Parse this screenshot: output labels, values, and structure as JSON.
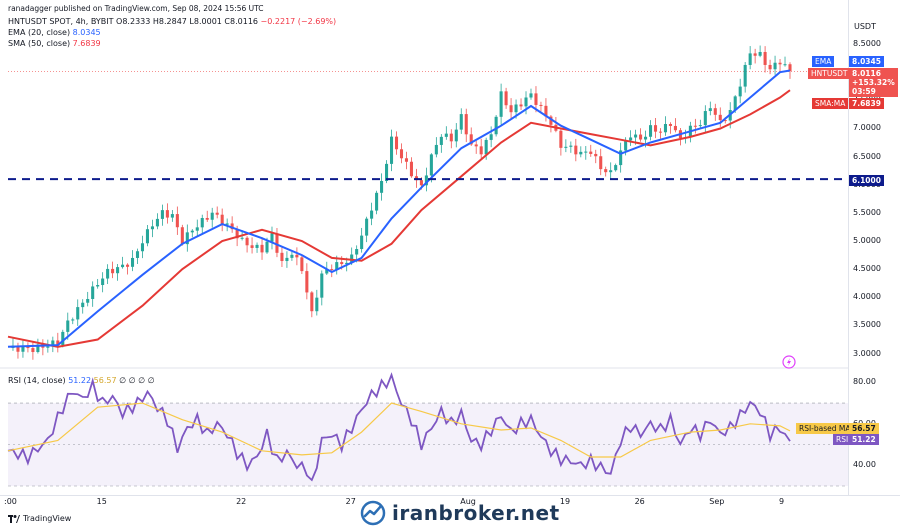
{
  "header": {
    "author_line": "ranadagger published on TradingView.com, Sep 08, 2024 15:56 UTC",
    "symbol": "HNTUSDT SPOT, 4h, BYBIT",
    "ohlc": "O8.2333  H8.2847  L8.0001  C8.0116",
    "change": "−0.2217 (−2.69%)",
    "ema_label": "EMA (20, close)",
    "ema_value": "8.0345",
    "sma_label": "SMA (50, close)",
    "sma_value": "7.6839"
  },
  "rsi_header": {
    "label": "RSI (14, close)",
    "value1": "51.22",
    "value2": "56.57",
    "rest": "∅ ∅ ∅ ∅"
  },
  "price_axis": {
    "currency": "USDT",
    "ticks": [
      "8.5000",
      "8.0000",
      "7.5000",
      "7.0000",
      "6.5000",
      "6.0000",
      "5.5000",
      "5.0000",
      "4.5000",
      "4.0000",
      "3.5000",
      "3.0000"
    ],
    "tags": {
      "ema_name": "EMA",
      "ema_value": "8.0345",
      "symbol": "HNTUSDT",
      "last": "8.0116",
      "change_pct": "+153.32%",
      "countdown": "03:59",
      "sma_name": "SMA:MA",
      "sma_value": "7.6839",
      "level": "6.1000"
    }
  },
  "rsi_axis": {
    "ticks": [
      "80.00",
      "60.00",
      "40.00"
    ],
    "tags": {
      "ma_name": "RSI-based MA",
      "ma_value": "56.57",
      "rsi_name": "RSI",
      "rsi_value": "51.22"
    }
  },
  "time_axis": {
    "labels": [
      ":00",
      "15",
      "22",
      "27",
      "Aug",
      "19",
      "26",
      "Sep",
      "9"
    ]
  },
  "footer": {
    "tradingview": "TradingView",
    "watermark": "iranbroker.net"
  },
  "colors": {
    "up": "#26a69a",
    "down": "#ef5350",
    "ema": "#2962ff",
    "sma": "#e53935",
    "rsi": "#7e57c2",
    "rsi_ma": "#f7c948",
    "level": "#0d1b8c"
  },
  "chart_data": [
    {
      "type": "candlestick",
      "title": "HNTUSDT SPOT, 4h, BYBIT",
      "ylim": [
        2.85,
        8.75
      ],
      "support_level": 6.1,
      "x_labels": [
        ":00",
        "15",
        "22",
        "27",
        "Aug",
        "19",
        "26",
        "Sep",
        "9"
      ],
      "close_path": [
        {
          "d": 0,
          "v": 3.1
        },
        {
          "d": 5,
          "v": 3.08
        },
        {
          "d": 8,
          "v": 3.15
        },
        {
          "d": 10,
          "v": 3.2
        },
        {
          "d": 12,
          "v": 3.55
        },
        {
          "d": 15,
          "v": 3.9
        },
        {
          "d": 18,
          "v": 4.25
        },
        {
          "d": 20,
          "v": 4.45
        },
        {
          "d": 23,
          "v": 4.55
        },
        {
          "d": 25,
          "v": 4.65
        },
        {
          "d": 27,
          "v": 5.0
        },
        {
          "d": 29,
          "v": 5.3
        },
        {
          "d": 31,
          "v": 5.5
        },
        {
          "d": 33,
          "v": 5.45
        },
        {
          "d": 35,
          "v": 5.0
        },
        {
          "d": 37,
          "v": 5.2
        },
        {
          "d": 39,
          "v": 5.35
        },
        {
          "d": 41,
          "v": 5.5
        },
        {
          "d": 43,
          "v": 5.35
        },
        {
          "d": 45,
          "v": 5.2
        },
        {
          "d": 47,
          "v": 5.0
        },
        {
          "d": 49,
          "v": 4.9
        },
        {
          "d": 51,
          "v": 4.85
        },
        {
          "d": 53,
          "v": 5.1
        },
        {
          "d": 55,
          "v": 4.6
        },
        {
          "d": 57,
          "v": 4.8
        },
        {
          "d": 59,
          "v": 4.5
        },
        {
          "d": 61,
          "v": 3.7
        },
        {
          "d": 63,
          "v": 4.4
        },
        {
          "d": 65,
          "v": 4.55
        },
        {
          "d": 67,
          "v": 4.6
        },
        {
          "d": 69,
          "v": 4.7
        },
        {
          "d": 71,
          "v": 5.1
        },
        {
          "d": 73,
          "v": 5.6
        },
        {
          "d": 75,
          "v": 6.05
        },
        {
          "d": 77,
          "v": 6.8
        },
        {
          "d": 79,
          "v": 6.5
        },
        {
          "d": 81,
          "v": 6.2
        },
        {
          "d": 83,
          "v": 5.95
        },
        {
          "d": 85,
          "v": 6.5
        },
        {
          "d": 87,
          "v": 6.9
        },
        {
          "d": 89,
          "v": 6.8
        },
        {
          "d": 91,
          "v": 7.2
        },
        {
          "d": 93,
          "v": 6.7
        },
        {
          "d": 95,
          "v": 6.6
        },
        {
          "d": 97,
          "v": 6.9
        },
        {
          "d": 99,
          "v": 7.6
        },
        {
          "d": 101,
          "v": 7.3
        },
        {
          "d": 103,
          "v": 7.45
        },
        {
          "d": 105,
          "v": 7.6
        },
        {
          "d": 107,
          "v": 7.35
        },
        {
          "d": 109,
          "v": 7.1
        },
        {
          "d": 111,
          "v": 6.7
        },
        {
          "d": 113,
          "v": 6.65
        },
        {
          "d": 115,
          "v": 6.55
        },
        {
          "d": 117,
          "v": 6.6
        },
        {
          "d": 119,
          "v": 6.3
        },
        {
          "d": 121,
          "v": 6.2
        },
        {
          "d": 123,
          "v": 6.6
        },
        {
          "d": 125,
          "v": 6.9
        },
        {
          "d": 127,
          "v": 6.8
        },
        {
          "d": 129,
          "v": 7.0
        },
        {
          "d": 131,
          "v": 6.95
        },
        {
          "d": 133,
          "v": 7.1
        },
        {
          "d": 135,
          "v": 6.8
        },
        {
          "d": 137,
          "v": 7.0
        },
        {
          "d": 139,
          "v": 7.1
        },
        {
          "d": 141,
          "v": 7.4
        },
        {
          "d": 143,
          "v": 7.1
        },
        {
          "d": 145,
          "v": 7.3
        },
        {
          "d": 147,
          "v": 7.8
        },
        {
          "d": 149,
          "v": 8.35
        },
        {
          "d": 151,
          "v": 8.3
        },
        {
          "d": 153,
          "v": 8.05
        },
        {
          "d": 155,
          "v": 8.2
        },
        {
          "d": 157,
          "v": 8.01
        }
      ],
      "ema_20": [
        {
          "d": 0,
          "v": 3.12
        },
        {
          "d": 10,
          "v": 3.15
        },
        {
          "d": 18,
          "v": 3.75
        },
        {
          "d": 27,
          "v": 4.4
        },
        {
          "d": 35,
          "v": 4.95
        },
        {
          "d": 43,
          "v": 5.3
        },
        {
          "d": 51,
          "v": 5.05
        },
        {
          "d": 59,
          "v": 4.75
        },
        {
          "d": 65,
          "v": 4.45
        },
        {
          "d": 71,
          "v": 4.7
        },
        {
          "d": 77,
          "v": 5.4
        },
        {
          "d": 83,
          "v": 5.95
        },
        {
          "d": 91,
          "v": 6.65
        },
        {
          "d": 99,
          "v": 7.05
        },
        {
          "d": 105,
          "v": 7.4
        },
        {
          "d": 111,
          "v": 7.05
        },
        {
          "d": 117,
          "v": 6.8
        },
        {
          "d": 123,
          "v": 6.55
        },
        {
          "d": 129,
          "v": 6.75
        },
        {
          "d": 137,
          "v": 6.95
        },
        {
          "d": 143,
          "v": 7.1
        },
        {
          "d": 149,
          "v": 7.55
        },
        {
          "d": 155,
          "v": 8.0
        },
        {
          "d": 157,
          "v": 8.03
        }
      ],
      "sma_50": [
        {
          "d": 0,
          "v": 3.3
        },
        {
          "d": 10,
          "v": 3.12
        },
        {
          "d": 18,
          "v": 3.25
        },
        {
          "d": 27,
          "v": 3.85
        },
        {
          "d": 35,
          "v": 4.5
        },
        {
          "d": 43,
          "v": 5.0
        },
        {
          "d": 51,
          "v": 5.2
        },
        {
          "d": 59,
          "v": 5.0
        },
        {
          "d": 65,
          "v": 4.7
        },
        {
          "d": 71,
          "v": 4.65
        },
        {
          "d": 77,
          "v": 4.95
        },
        {
          "d": 83,
          "v": 5.55
        },
        {
          "d": 91,
          "v": 6.15
        },
        {
          "d": 99,
          "v": 6.75
        },
        {
          "d": 105,
          "v": 7.1
        },
        {
          "d": 111,
          "v": 7.0
        },
        {
          "d": 117,
          "v": 6.9
        },
        {
          "d": 123,
          "v": 6.8
        },
        {
          "d": 129,
          "v": 6.7
        },
        {
          "d": 137,
          "v": 6.85
        },
        {
          "d": 143,
          "v": 7.0
        },
        {
          "d": 149,
          "v": 7.25
        },
        {
          "d": 155,
          "v": 7.55
        },
        {
          "d": 157,
          "v": 7.68
        }
      ]
    },
    {
      "type": "line",
      "title": "RSI (14, close)",
      "ylim": [
        30,
        85
      ],
      "bands": [
        70,
        30
      ],
      "rsi": [
        {
          "d": 0,
          "v": 47
        },
        {
          "d": 4,
          "v": 44
        },
        {
          "d": 8,
          "v": 52
        },
        {
          "d": 11,
          "v": 68
        },
        {
          "d": 13,
          "v": 76
        },
        {
          "d": 15,
          "v": 72
        },
        {
          "d": 17,
          "v": 78
        },
        {
          "d": 19,
          "v": 70
        },
        {
          "d": 21,
          "v": 73
        },
        {
          "d": 23,
          "v": 65
        },
        {
          "d": 26,
          "v": 70
        },
        {
          "d": 28,
          "v": 75
        },
        {
          "d": 30,
          "v": 68
        },
        {
          "d": 32,
          "v": 62
        },
        {
          "d": 34,
          "v": 48
        },
        {
          "d": 36,
          "v": 58
        },
        {
          "d": 38,
          "v": 62
        },
        {
          "d": 40,
          "v": 55
        },
        {
          "d": 42,
          "v": 60
        },
        {
          "d": 44,
          "v": 55
        },
        {
          "d": 46,
          "v": 46
        },
        {
          "d": 48,
          "v": 40
        },
        {
          "d": 50,
          "v": 44
        },
        {
          "d": 52,
          "v": 55
        },
        {
          "d": 54,
          "v": 42
        },
        {
          "d": 56,
          "v": 46
        },
        {
          "d": 58,
          "v": 40
        },
        {
          "d": 60,
          "v": 38
        },
        {
          "d": 61,
          "v": 30
        },
        {
          "d": 63,
          "v": 52
        },
        {
          "d": 65,
          "v": 55
        },
        {
          "d": 67,
          "v": 50
        },
        {
          "d": 69,
          "v": 58
        },
        {
          "d": 71,
          "v": 67
        },
        {
          "d": 73,
          "v": 74
        },
        {
          "d": 75,
          "v": 78
        },
        {
          "d": 77,
          "v": 82
        },
        {
          "d": 79,
          "v": 70
        },
        {
          "d": 81,
          "v": 62
        },
        {
          "d": 83,
          "v": 50
        },
        {
          "d": 85,
          "v": 58
        },
        {
          "d": 87,
          "v": 66
        },
        {
          "d": 89,
          "v": 60
        },
        {
          "d": 91,
          "v": 65
        },
        {
          "d": 93,
          "v": 52
        },
        {
          "d": 95,
          "v": 50
        },
        {
          "d": 97,
          "v": 57
        },
        {
          "d": 99,
          "v": 64
        },
        {
          "d": 101,
          "v": 56
        },
        {
          "d": 103,
          "v": 60
        },
        {
          "d": 105,
          "v": 62
        },
        {
          "d": 107,
          "v": 54
        },
        {
          "d": 109,
          "v": 47
        },
        {
          "d": 111,
          "v": 43
        },
        {
          "d": 113,
          "v": 42
        },
        {
          "d": 115,
          "v": 40
        },
        {
          "d": 117,
          "v": 42
        },
        {
          "d": 119,
          "v": 39
        },
        {
          "d": 121,
          "v": 36
        },
        {
          "d": 123,
          "v": 52
        },
        {
          "d": 125,
          "v": 59
        },
        {
          "d": 127,
          "v": 55
        },
        {
          "d": 129,
          "v": 60
        },
        {
          "d": 131,
          "v": 57
        },
        {
          "d": 133,
          "v": 62
        },
        {
          "d": 135,
          "v": 50
        },
        {
          "d": 137,
          "v": 58
        },
        {
          "d": 139,
          "v": 55
        },
        {
          "d": 141,
          "v": 62
        },
        {
          "d": 143,
          "v": 55
        },
        {
          "d": 145,
          "v": 58
        },
        {
          "d": 147,
          "v": 64
        },
        {
          "d": 149,
          "v": 70
        },
        {
          "d": 151,
          "v": 66
        },
        {
          "d": 153,
          "v": 55
        },
        {
          "d": 155,
          "v": 58
        },
        {
          "d": 157,
          "v": 51
        }
      ],
      "rsi_ma": [
        {
          "d": 0,
          "v": 47
        },
        {
          "d": 10,
          "v": 52
        },
        {
          "d": 18,
          "v": 68
        },
        {
          "d": 27,
          "v": 70
        },
        {
          "d": 35,
          "v": 62
        },
        {
          "d": 43,
          "v": 56
        },
        {
          "d": 51,
          "v": 47
        },
        {
          "d": 59,
          "v": 45
        },
        {
          "d": 65,
          "v": 46
        },
        {
          "d": 71,
          "v": 56
        },
        {
          "d": 77,
          "v": 70
        },
        {
          "d": 83,
          "v": 66
        },
        {
          "d": 91,
          "v": 60
        },
        {
          "d": 99,
          "v": 57
        },
        {
          "d": 105,
          "v": 58
        },
        {
          "d": 111,
          "v": 52
        },
        {
          "d": 117,
          "v": 44
        },
        {
          "d": 123,
          "v": 44
        },
        {
          "d": 129,
          "v": 52
        },
        {
          "d": 137,
          "v": 56
        },
        {
          "d": 143,
          "v": 57
        },
        {
          "d": 149,
          "v": 60
        },
        {
          "d": 155,
          "v": 59
        },
        {
          "d": 157,
          "v": 56.57
        }
      ]
    }
  ]
}
